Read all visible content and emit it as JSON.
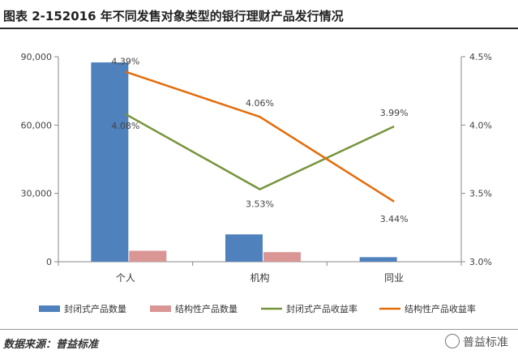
{
  "header": {
    "title": "图表 2-152016 年不同发售对象类型的银行理财产品发行情况"
  },
  "footer": {
    "source": "数据来源：普益标准",
    "watermark": "普益标准"
  },
  "chart_data": {
    "type": "bar+line",
    "categories": [
      "个人",
      "机构",
      "同业"
    ],
    "bar_series": [
      {
        "name": "封闭式产品数量",
        "color": "#4f81bd",
        "values": [
          87500,
          12000,
          2000
        ]
      },
      {
        "name": "结构性产品数量",
        "color": "#d99694",
        "values": [
          4800,
          4200,
          0
        ]
      }
    ],
    "line_series": [
      {
        "name": "封闭式产品收益率",
        "color": "#77933c",
        "values": [
          4.08,
          3.53,
          3.99
        ],
        "labels": [
          "4.08%",
          "3.53%",
          "3.99%"
        ]
      },
      {
        "name": "结构性产品收益率",
        "color": "#e46c0a",
        "values": [
          4.39,
          4.06,
          3.44
        ],
        "labels": [
          "4.39%",
          "4.06%",
          "3.44%"
        ]
      }
    ],
    "y_left": {
      "min": 0,
      "max": 90000,
      "ticks": [
        0,
        30000,
        60000,
        90000
      ],
      "tick_labels": [
        "0",
        "30,000",
        "60,000",
        "90,000"
      ]
    },
    "y_right": {
      "min": 3.0,
      "max": 4.5,
      "ticks": [
        3.0,
        3.5,
        4.0,
        4.5
      ],
      "tick_labels": [
        "3.0%",
        "3.5%",
        "4.0%",
        "4.5%"
      ]
    },
    "legend": [
      "封闭式产品数量",
      "结构性产品数量",
      "封闭式产品收益率",
      "结构性产品收益率"
    ]
  }
}
